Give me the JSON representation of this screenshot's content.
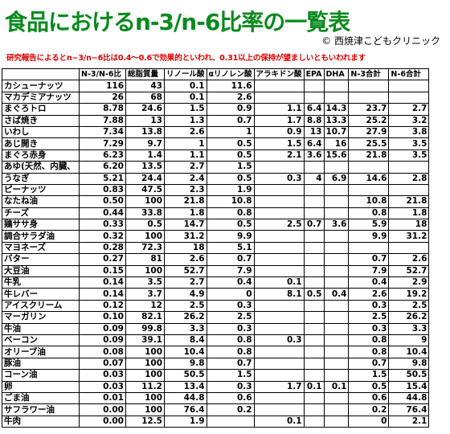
{
  "header": {
    "title": "食品におけるn-3/n-6比率の一覧表",
    "credit": "© 西焼津こどもクリニック",
    "note": "研究報告によるとn−3/n−6比は0.4～0.6で効果的といわれ、0.31以上の保持が望ましいともいわれます"
  },
  "table": {
    "columns": [
      null,
      "N-3/N-6比",
      "総脂質量",
      "リノール酸",
      "αリノレン酸",
      "アラキドン酸",
      "EPA",
      "DHA",
      "N-3合計",
      "N-6合計"
    ],
    "rows": [
      [
        "カシューナッツ",
        "116",
        "43",
        "0.1",
        "11.6",
        null,
        null,
        null,
        null,
        null
      ],
      [
        "マカデミアナッツ",
        "26",
        "68",
        "0.1",
        "2.6",
        null,
        null,
        null,
        null,
        null
      ],
      [
        "まぐろトロ",
        "8.78",
        "24.6",
        "1.5",
        "0.9",
        "1.1",
        "6.4",
        "14.3",
        "23.7",
        "2.7"
      ],
      [
        "さば焼き",
        "7.88",
        "13",
        "1.3",
        "0.7",
        "1.7",
        "8.8",
        "13.3",
        "25.2",
        "3.2"
      ],
      [
        "いわし",
        "7.34",
        "13.8",
        "2.6",
        "1",
        "0.9",
        "13",
        "10.7",
        "27.9",
        "3.8"
      ],
      [
        "あじ開き",
        "7.29",
        "9.7",
        "1",
        "0.5",
        "1.5",
        "6.4",
        "16",
        "25.5",
        "3.5"
      ],
      [
        "まぐろ赤身",
        "6.23",
        "1.4",
        "1.1",
        "0.5",
        "2.1",
        "3.6",
        "15.6",
        "21.8",
        "3.5"
      ],
      [
        "あゆ(天然、内臓、",
        "6.20",
        "13.5",
        "2.7",
        "1.5",
        null,
        null,
        null,
        null,
        null
      ],
      [
        "うなぎ",
        "5.21",
        "24.4",
        "2.4",
        "0.5",
        "0.3",
        "4",
        "6.9",
        "14.6",
        "2.8"
      ],
      [
        "ピーナッツ",
        "0.83",
        "47.5",
        "2.3",
        "1.9",
        null,
        null,
        null,
        null,
        null
      ],
      [
        "なたね油",
        "0.50",
        "100",
        "21.8",
        "10.8",
        null,
        null,
        null,
        "10.8",
        "21.8"
      ],
      [
        "チーズ",
        "0.44",
        "33.8",
        "1.8",
        "0.8",
        null,
        null,
        null,
        "0.8",
        "1.8"
      ],
      [
        "鶏ササ身",
        "0.33",
        "0.5",
        "14.7",
        "0.5",
        "2.5",
        "0.7",
        "3.6",
        "5.9",
        "18"
      ],
      [
        "調合サラダ油",
        "0.32",
        "100",
        "31.2",
        "9.9",
        null,
        null,
        null,
        "9.9",
        "31.2"
      ],
      [
        "マヨネーズ",
        "0.28",
        "72.3",
        "18",
        "5.1",
        null,
        null,
        null,
        null,
        null
      ],
      [
        "バター",
        "0.27",
        "81",
        "2.6",
        "0.7",
        null,
        null,
        null,
        "0.7",
        "2.6"
      ],
      [
        "大豆油",
        "0.15",
        "100",
        "52.7",
        "7.9",
        null,
        null,
        null,
        "7.9",
        "52.7"
      ],
      [
        "牛乳",
        "0.14",
        "3.5",
        "2.7",
        "0.4",
        "0.1",
        null,
        null,
        "0.4",
        "2.9"
      ],
      [
        "牛レバー",
        "0.14",
        "3.7",
        "4.9",
        "0",
        "8.1",
        "0.5",
        "0.4",
        "2.6",
        "19.2"
      ],
      [
        "アイスクリーム",
        "0.12",
        "12",
        "2.5",
        "0.3",
        null,
        null,
        null,
        "0.3",
        "2.5"
      ],
      [
        "マーガリン",
        "0.10",
        "82.1",
        "26.2",
        "2.5",
        null,
        null,
        null,
        "2.5",
        "26.2"
      ],
      [
        "牛油",
        "0.09",
        "99.8",
        "3.3",
        "0.3",
        null,
        null,
        null,
        "0.3",
        "3.3"
      ],
      [
        "ベーコン",
        "0.09",
        "39.1",
        "8.4",
        "0.8",
        "0.3",
        null,
        null,
        "0.8",
        "9"
      ],
      [
        "オリーブ油",
        "0.08",
        "100",
        "10.4",
        "0.8",
        null,
        null,
        null,
        "0.8",
        "10.4"
      ],
      [
        "豚油",
        "0.07",
        "100",
        "9.8",
        "0.7",
        null,
        null,
        null,
        "0.7",
        "9.8"
      ],
      [
        "コーン油",
        "0.03",
        "100",
        "50.5",
        "1.5",
        null,
        null,
        null,
        "1.5",
        "50.5"
      ],
      [
        "卵",
        "0.03",
        "11.2",
        "13.4",
        "0.3",
        "1.7",
        "0.1",
        "0.1",
        "0.5",
        "15.4"
      ],
      [
        "ごま油",
        "0.01",
        "100",
        "44.8",
        "0.6",
        null,
        null,
        null,
        "0.6",
        "44.8"
      ],
      [
        "サフラワー油",
        "0.00",
        "100",
        "76.4",
        "0.2",
        null,
        null,
        null,
        "0.2",
        "76.4"
      ],
      [
        "牛肉",
        "0.00",
        "12.5",
        "1.9",
        null,
        "0.1",
        null,
        null,
        "0",
        "2.1"
      ]
    ]
  }
}
